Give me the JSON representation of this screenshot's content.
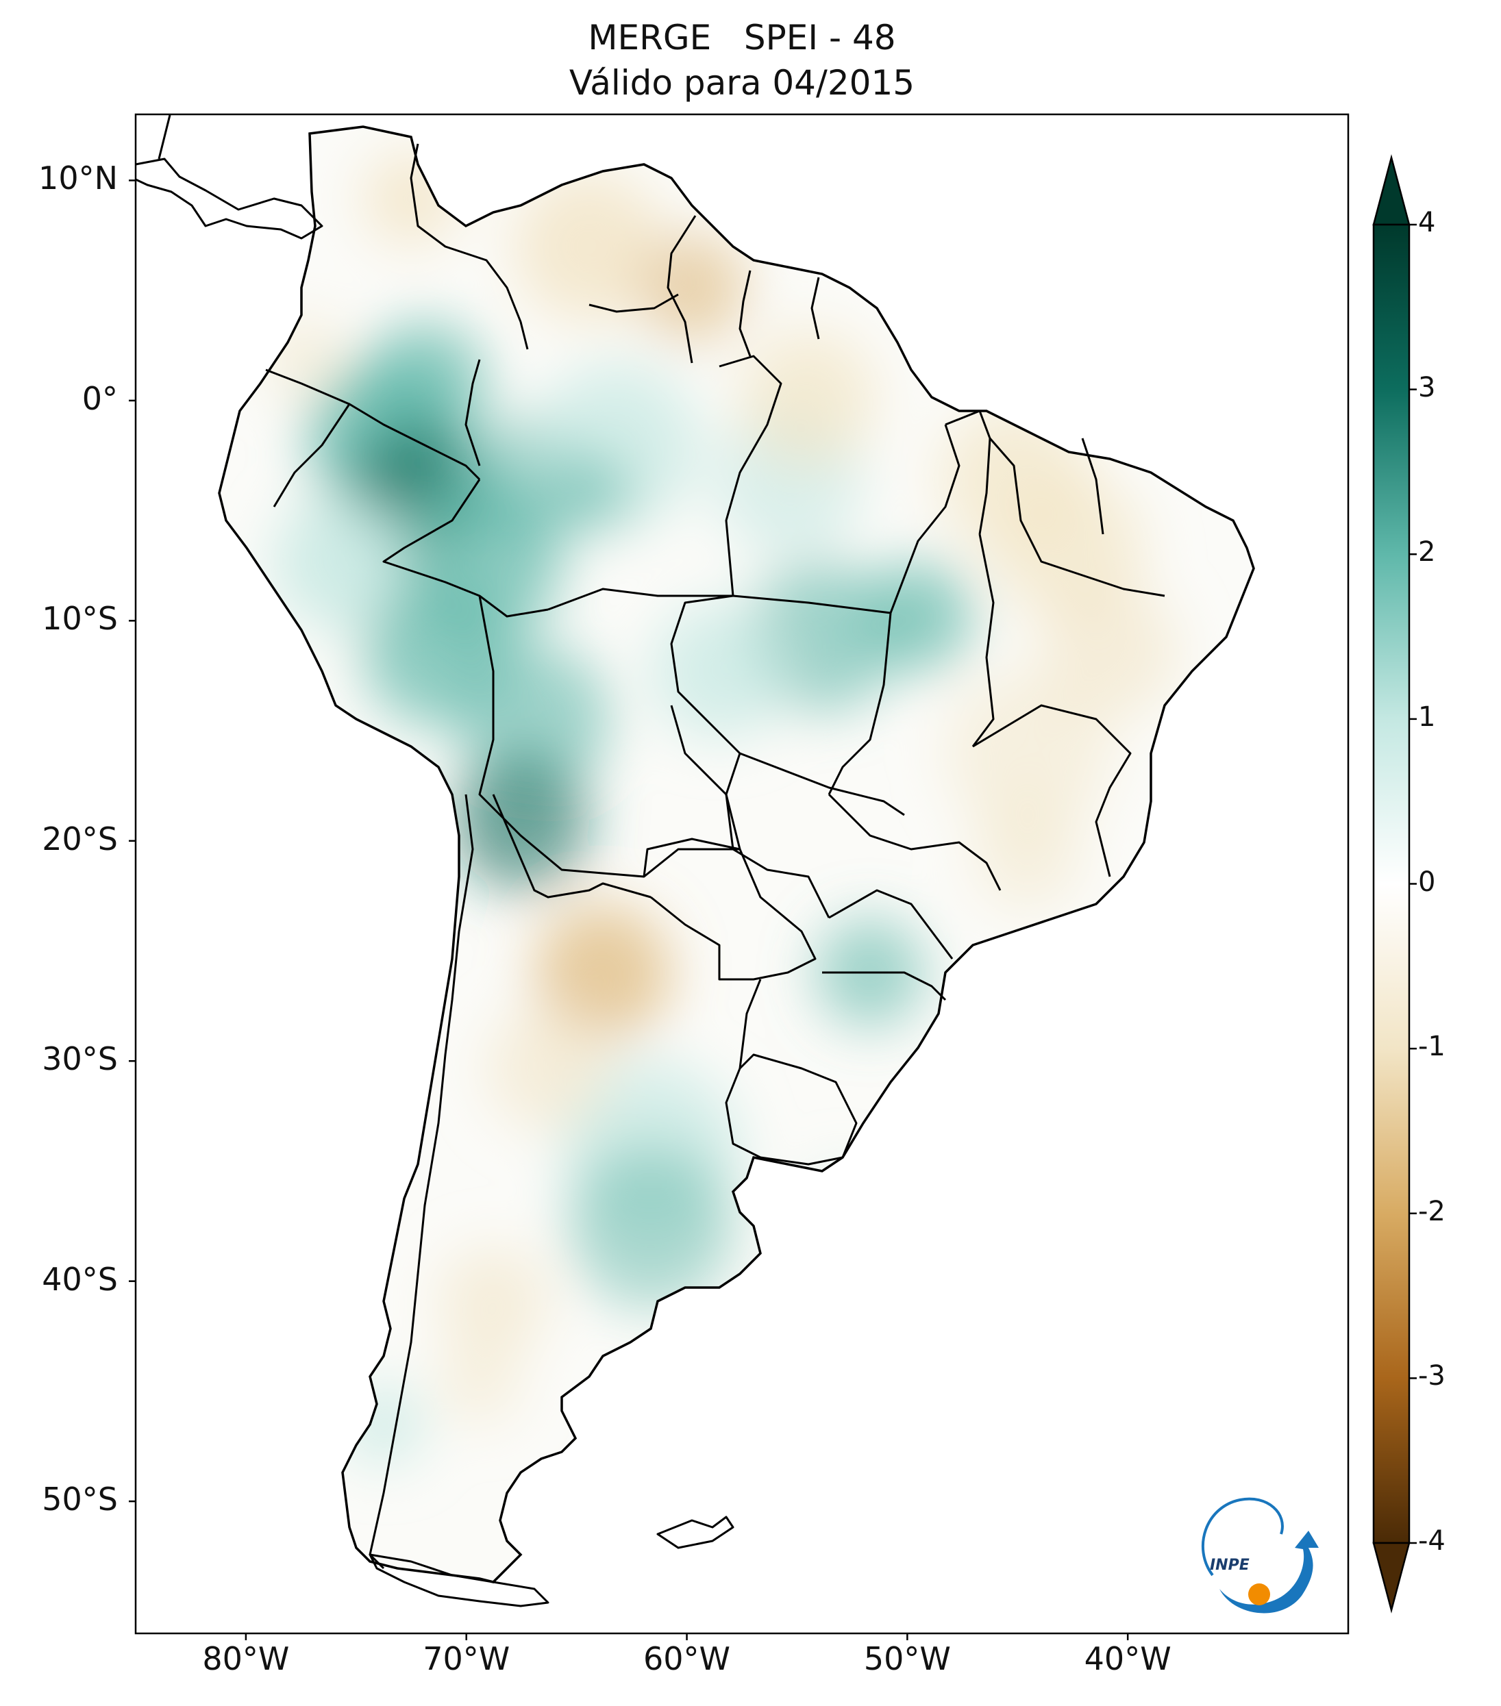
{
  "title": {
    "line1": "MERGE   SPEI - 48",
    "line2": "Válido para 04/2015"
  },
  "map": {
    "lon_range": [
      -85,
      -30
    ],
    "lat_range": [
      -56,
      13
    ],
    "lat_ticks": [
      {
        "value": 10,
        "label": "10°N"
      },
      {
        "value": 0,
        "label": "0°"
      },
      {
        "value": -10,
        "label": "10°S"
      },
      {
        "value": -20,
        "label": "20°S"
      },
      {
        "value": -30,
        "label": "30°S"
      },
      {
        "value": -40,
        "label": "40°S"
      },
      {
        "value": -50,
        "label": "50°S"
      }
    ],
    "lon_ticks": [
      {
        "value": -80,
        "label": "80°W"
      },
      {
        "value": -70,
        "label": "70°W"
      },
      {
        "value": -60,
        "label": "60°W"
      },
      {
        "value": -50,
        "label": "50°W"
      },
      {
        "value": -40,
        "label": "40°W"
      }
    ],
    "pattern_summary": {
      "wet_regions": [
        "western Amazon",
        "Peru",
        "Bolivia",
        "central-west Brazil",
        "Patagonia coast"
      ],
      "dry_regions": [
        "Venezuela",
        "Guianas",
        "northeast Brazil",
        "north Argentina",
        "southern Argentina"
      ]
    }
  },
  "colorbar": {
    "min": -4,
    "max": 4,
    "ticks": [
      {
        "value": 4,
        "label": "4"
      },
      {
        "value": 3,
        "label": "3"
      },
      {
        "value": 2,
        "label": "2"
      },
      {
        "value": 1,
        "label": "1"
      },
      {
        "value": 0,
        "label": "0"
      },
      {
        "value": -1,
        "label": "-1"
      },
      {
        "value": -2,
        "label": "-2"
      },
      {
        "value": -3,
        "label": "-3"
      },
      {
        "value": -4,
        "label": "-4"
      }
    ],
    "colors": {
      "wet_max": "#00392c",
      "wet_high": "#0d6d5e",
      "wet_mid": "#5fb8aa",
      "wet_low": "#c4e8e2",
      "neutral": "#ffffff",
      "dry_low": "#f2e5c6",
      "dry_mid": "#d8ab63",
      "dry_high": "#a9661b",
      "dry_max": "#4a2a06"
    }
  },
  "logo": {
    "text": "INPE",
    "colors": {
      "arrow": "#1976bd",
      "sun": "#f28c00"
    }
  }
}
